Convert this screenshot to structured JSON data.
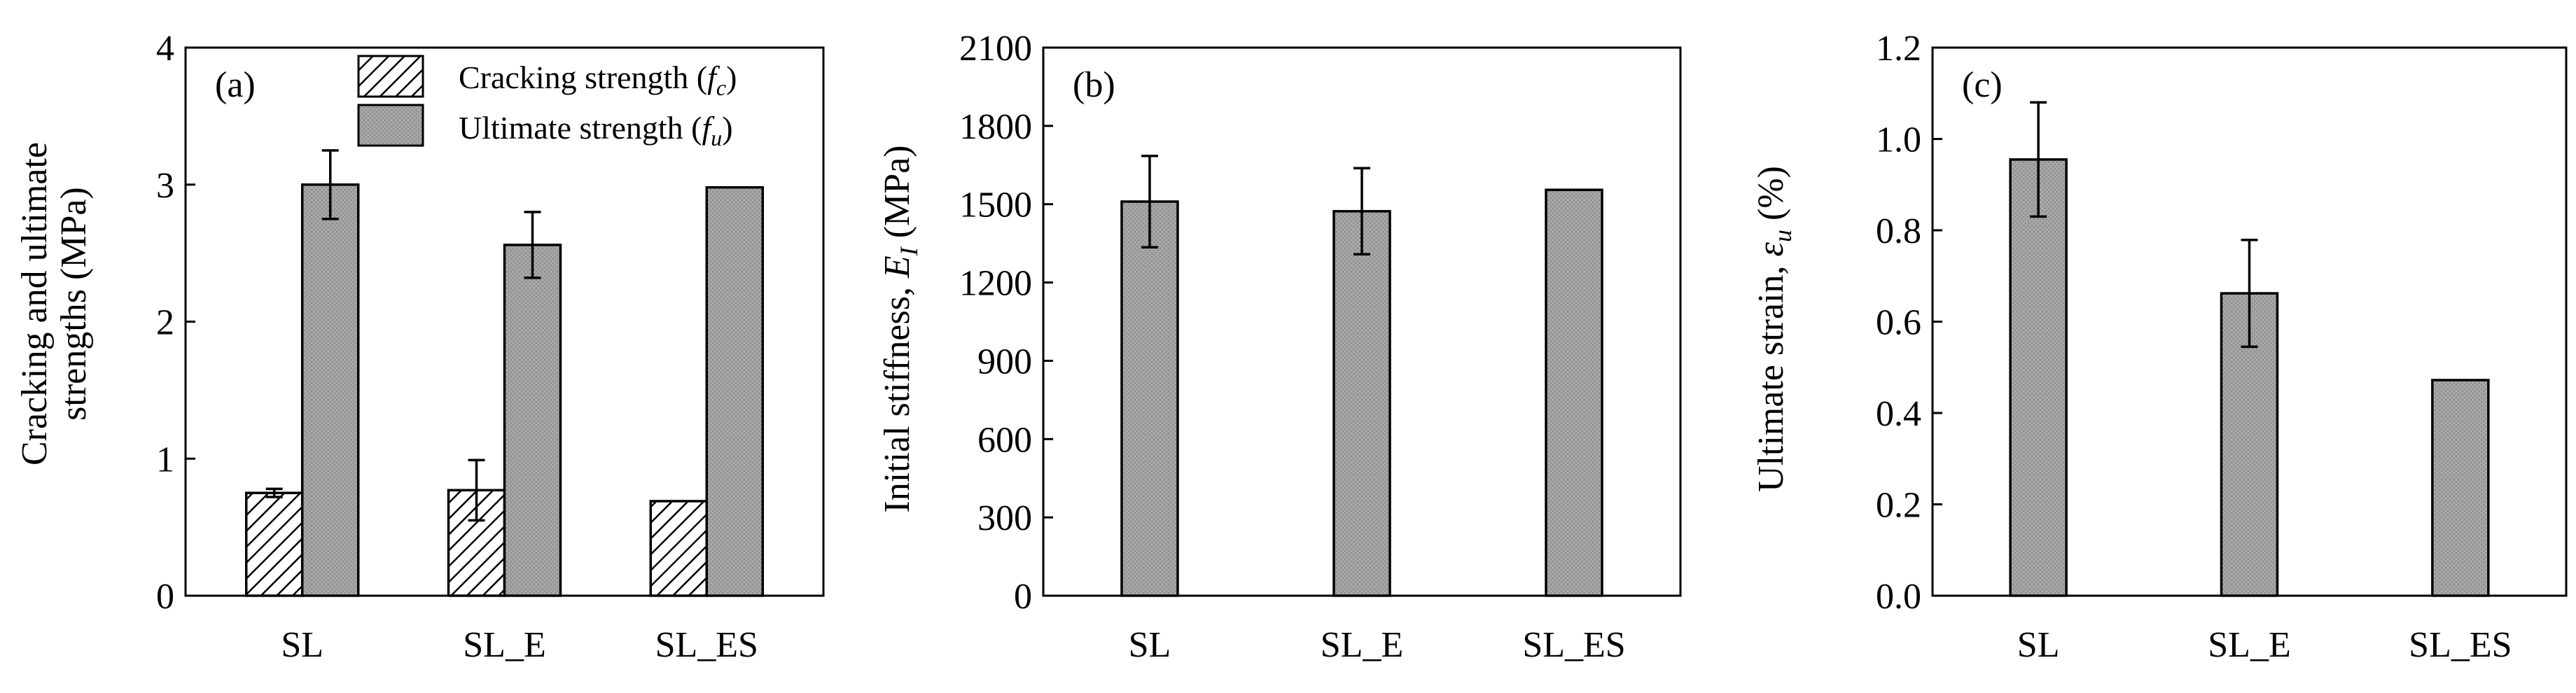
{
  "colors": {
    "gray_fill": "#a6a6a6",
    "gray_dot": "#8a8a8a",
    "hatch_line": "#000000",
    "axis": "#000000"
  },
  "chart_data": [
    {
      "type": "bar",
      "panel_label": "(a)",
      "categories": [
        "SL",
        "SL_E",
        "SL_ES"
      ],
      "ylabel_line1": "Cracking and ultimate",
      "ylabel_line2": "strengths (MPa)",
      "ylim": [
        0,
        4
      ],
      "yticks": [
        0,
        1,
        2,
        3,
        4
      ],
      "ytick_labels": [
        "0",
        "1",
        "2",
        "3",
        "4"
      ],
      "legend": {
        "position": "top-center",
        "entries": [
          {
            "text": "Cracking strength (",
            "sym": "f",
            "sub": "c",
            "close": ")"
          },
          {
            "text": "Ultimate strength (",
            "sym": "f",
            "sub": "u",
            "close": ")"
          }
        ]
      },
      "series": [
        {
          "name": "Cracking strength (fc)",
          "pattern": "hatch",
          "values": [
            0.75,
            0.77,
            0.69
          ],
          "errors": [
            0.03,
            0.22,
            null
          ]
        },
        {
          "name": "Ultimate strength (fu)",
          "pattern": "gray",
          "values": [
            3.0,
            2.56,
            2.98
          ],
          "errors": [
            0.25,
            0.24,
            null
          ]
        }
      ]
    },
    {
      "type": "bar",
      "panel_label": "(b)",
      "categories": [
        "SL",
        "SL_E",
        "SL_ES"
      ],
      "ylabel_text": "Initial stiffness, ",
      "ylabel_sym": "E",
      "ylabel_sub": "I",
      "ylabel_unit": " (MPa)",
      "ylim": [
        0,
        2100
      ],
      "yticks": [
        0,
        300,
        600,
        900,
        1200,
        1500,
        1800,
        2100
      ],
      "ytick_labels": [
        "0",
        "300",
        "600",
        "900",
        "1200",
        "1500",
        "1800",
        "2100"
      ],
      "series": [
        {
          "name": "Initial stiffness",
          "pattern": "gray",
          "values": [
            1510,
            1473,
            1555
          ],
          "errors": [
            175,
            165,
            null
          ]
        }
      ]
    },
    {
      "type": "bar",
      "panel_label": "(c)",
      "categories": [
        "SL",
        "SL_E",
        "SL_ES"
      ],
      "ylabel_text": "Ultimate strain, ",
      "ylabel_sym": "ε",
      "ylabel_sub": "u",
      "ylabel_unit": " (%)",
      "ylim": [
        0,
        1.2
      ],
      "yticks": [
        0,
        0.2,
        0.4,
        0.6,
        0.8,
        1.0,
        1.2
      ],
      "ytick_labels": [
        "0.0",
        "0.2",
        "0.4",
        "0.6",
        "0.8",
        "1.0",
        "1.2"
      ],
      "series": [
        {
          "name": "Ultimate strain",
          "pattern": "gray",
          "values": [
            0.955,
            0.662,
            0.472
          ],
          "errors": [
            0.125,
            0.117,
            null
          ]
        }
      ]
    }
  ]
}
